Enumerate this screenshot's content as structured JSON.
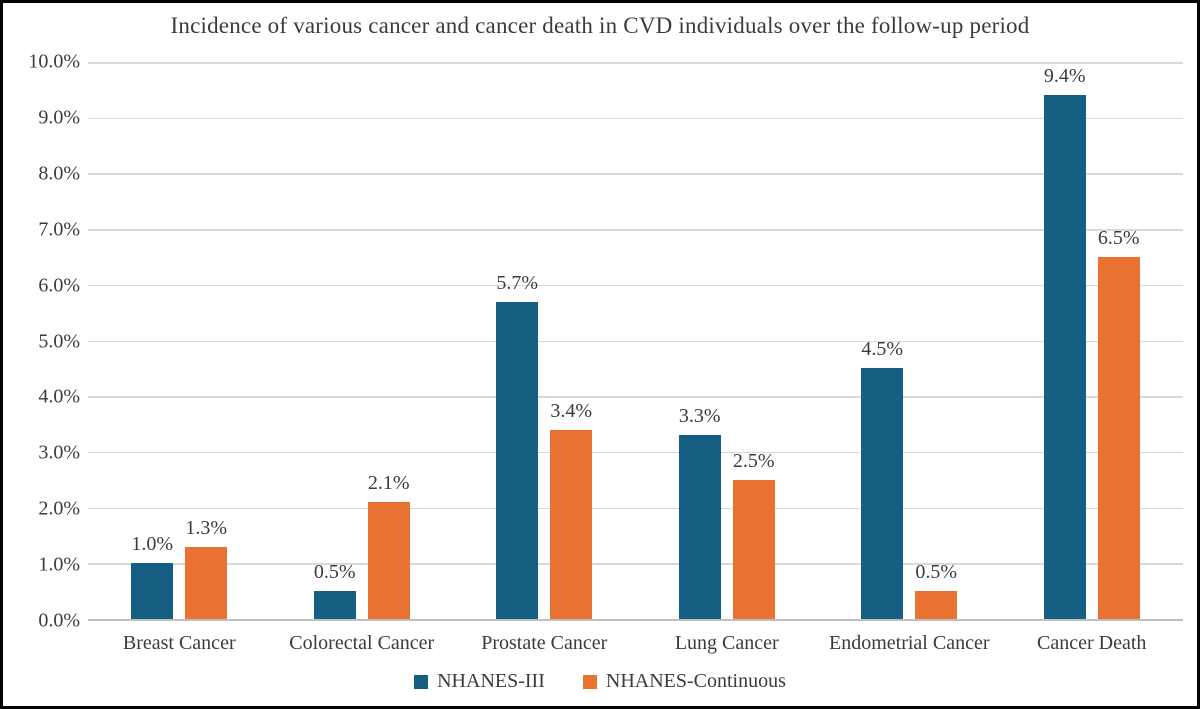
{
  "figure": {
    "background_color": "#FFFFFF",
    "border_color": "#000000",
    "text_color": "#3B3B3B"
  },
  "chart_data": {
    "type": "bar",
    "title": "Incidence of various cancer and cancer death in CVD individuals over the follow-up period",
    "categories": [
      "Breast Cancer",
      "Colorectal Cancer",
      "Prostate Cancer",
      "Lung Cancer",
      "Endometrial Cancer",
      "Cancer Death"
    ],
    "series": [
      {
        "name": "NHANES-III",
        "color": "#156082",
        "values": [
          1.0,
          0.5,
          5.7,
          3.3,
          4.5,
          9.4
        ],
        "labels": [
          "1.0%",
          "0.5%",
          "5.7%",
          "3.3%",
          "4.5%",
          "9.4%"
        ]
      },
      {
        "name": "NHANES-Continuous",
        "color": "#E97132",
        "values": [
          1.3,
          2.1,
          3.4,
          2.5,
          0.5,
          6.5
        ],
        "labels": [
          "1.3%",
          "2.1%",
          "3.4%",
          "2.5%",
          "0.5%",
          "6.5%"
        ]
      }
    ],
    "ylim": [
      0,
      10
    ],
    "y_tick_step": 1,
    "y_tick_labels": [
      "0.0%",
      "1.0%",
      "2.0%",
      "3.0%",
      "4.0%",
      "5.0%",
      "6.0%",
      "7.0%",
      "8.0%",
      "9.0%",
      "10.0%"
    ],
    "grid": true,
    "gridline_color": "#D9D9D9",
    "axis_line_color": "#BFBFBF",
    "legend_position": "bottom"
  }
}
